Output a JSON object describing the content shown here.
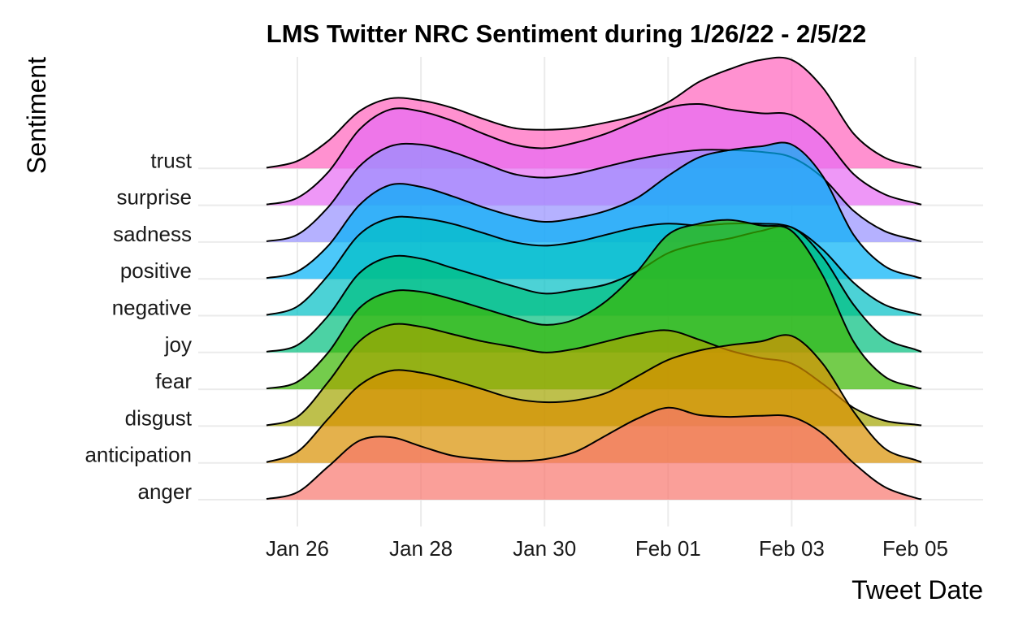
{
  "chart_data": {
    "type": "ridgeline",
    "title": "LMS Twitter NRC Sentiment during 1/26/22 - 2/5/22",
    "xlabel": "Tweet Date",
    "ylabel": "Sentiment",
    "x_ticks": [
      {
        "label": "Jan 26",
        "day": 0
      },
      {
        "label": "Jan 28",
        "day": 2
      },
      {
        "label": "Jan 30",
        "day": 4
      },
      {
        "label": "Feb 01",
        "day": 6
      },
      {
        "label": "Feb 03",
        "day": 8
      },
      {
        "label": "Feb 05",
        "day": 10
      }
    ],
    "x_unit": "days since Jan 26",
    "xlim": [
      -1.2,
      11.1
    ],
    "density_unit": "relative density (1.0 = spacing between rows)",
    "grid": true,
    "legend": "none",
    "x": [
      -0.5,
      0,
      0.5,
      1,
      1.5,
      2,
      2.5,
      3,
      3.5,
      4,
      4.5,
      5,
      5.5,
      6,
      6.5,
      7,
      7.5,
      8,
      8.5,
      9,
      9.5,
      10,
      10.1
    ],
    "series": [
      {
        "name": "anger",
        "color": "#F8766D",
        "values": [
          0.02,
          0.2,
          0.9,
          1.6,
          1.7,
          1.45,
          1.2,
          1.1,
          1.05,
          1.1,
          1.3,
          1.75,
          2.2,
          2.5,
          2.3,
          2.25,
          2.28,
          2.25,
          1.8,
          1.0,
          0.35,
          0.05,
          0.02
        ]
      },
      {
        "name": "anticipation",
        "color": "#D89000",
        "values": [
          0.02,
          0.3,
          1.2,
          2.1,
          2.5,
          2.45,
          2.25,
          2.0,
          1.75,
          1.65,
          1.7,
          1.9,
          2.35,
          2.8,
          3.05,
          3.2,
          3.3,
          3.45,
          2.7,
          1.4,
          0.4,
          0.08,
          0.02
        ]
      },
      {
        "name": "disgust",
        "color": "#A3A500",
        "values": [
          0.02,
          0.25,
          1.2,
          2.3,
          2.75,
          2.7,
          2.5,
          2.3,
          2.15,
          2.0,
          2.1,
          2.3,
          2.5,
          2.6,
          2.35,
          2.05,
          1.85,
          1.7,
          1.15,
          0.5,
          0.15,
          0.04,
          0.02
        ]
      },
      {
        "name": "fear",
        "color": "#39B600",
        "values": [
          0.02,
          0.2,
          1.0,
          2.2,
          2.65,
          2.65,
          2.45,
          2.2,
          1.95,
          1.75,
          1.9,
          2.4,
          3.2,
          4.2,
          4.5,
          4.6,
          4.45,
          4.3,
          3.1,
          1.3,
          0.35,
          0.06,
          0.02
        ]
      },
      {
        "name": "joy",
        "color": "#00BF7D",
        "values": [
          0.02,
          0.2,
          1.0,
          2.15,
          2.6,
          2.55,
          2.3,
          2.05,
          1.8,
          1.6,
          1.7,
          1.85,
          2.2,
          2.7,
          2.95,
          3.1,
          3.3,
          3.4,
          2.6,
          1.3,
          0.4,
          0.08,
          0.02
        ]
      },
      {
        "name": "negative",
        "color": "#00BFC4",
        "values": [
          0.02,
          0.25,
          1.1,
          2.2,
          2.65,
          2.65,
          2.5,
          2.25,
          2.0,
          1.9,
          2.0,
          2.2,
          2.4,
          2.5,
          2.45,
          2.5,
          2.5,
          2.4,
          1.8,
          0.9,
          0.3,
          0.06,
          0.02
        ]
      },
      {
        "name": "positive",
        "color": "#00B0F6",
        "values": [
          0.02,
          0.2,
          0.9,
          2.0,
          2.55,
          2.5,
          2.25,
          1.95,
          1.7,
          1.55,
          1.65,
          1.85,
          2.2,
          2.8,
          3.3,
          3.5,
          3.6,
          3.65,
          2.8,
          1.2,
          0.35,
          0.06,
          0.02
        ]
      },
      {
        "name": "sadness",
        "color": "#9590FF",
        "values": [
          0.02,
          0.2,
          0.95,
          2.05,
          2.6,
          2.65,
          2.45,
          2.15,
          1.85,
          1.75,
          1.85,
          2.05,
          2.25,
          2.4,
          2.5,
          2.5,
          2.45,
          2.3,
          1.75,
          0.85,
          0.3,
          0.06,
          0.02
        ]
      },
      {
        "name": "surprise",
        "color": "#E76BF3",
        "values": [
          0.02,
          0.2,
          0.9,
          2.05,
          2.6,
          2.55,
          2.3,
          1.95,
          1.65,
          1.55,
          1.7,
          1.95,
          2.3,
          2.65,
          2.75,
          2.6,
          2.5,
          2.45,
          1.85,
          0.85,
          0.3,
          0.06,
          0.02
        ]
      },
      {
        "name": "trust",
        "color": "#FF62BC",
        "values": [
          0.02,
          0.2,
          0.75,
          1.55,
          1.9,
          1.85,
          1.65,
          1.35,
          1.1,
          1.05,
          1.1,
          1.25,
          1.45,
          1.8,
          2.35,
          2.7,
          2.95,
          2.95,
          2.2,
          0.95,
          0.3,
          0.06,
          0.02
        ]
      }
    ]
  }
}
